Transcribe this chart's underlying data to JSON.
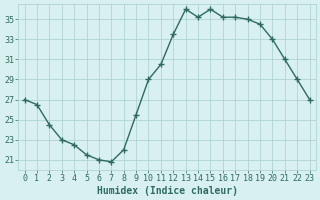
{
  "x": [
    0,
    1,
    2,
    3,
    4,
    5,
    6,
    7,
    8,
    9,
    10,
    11,
    12,
    13,
    14,
    15,
    16,
    17,
    18,
    19,
    20,
    21,
    22,
    23
  ],
  "y": [
    27,
    26.5,
    24.5,
    23,
    22.5,
    21.5,
    21,
    20.8,
    22,
    25.5,
    29,
    30.5,
    33.5,
    36,
    35.2,
    36,
    35.2,
    35.2,
    35,
    34.5,
    33,
    31,
    29,
    27
  ],
  "line_color": "#2e6b5e",
  "marker": "+",
  "marker_size": 4,
  "marker_lw": 1.0,
  "line_width": 1.0,
  "bg_color": "#d8f0ef",
  "grid_color": "#aacfcc",
  "xlabel": "Humidex (Indice chaleur)",
  "ylim": [
    20.0,
    36.5
  ],
  "xlim": [
    -0.5,
    23.5
  ],
  "yticks": [
    21,
    23,
    25,
    27,
    29,
    31,
    33,
    35
  ],
  "xticks": [
    0,
    1,
    2,
    3,
    4,
    5,
    6,
    7,
    8,
    9,
    10,
    11,
    12,
    13,
    14,
    15,
    16,
    17,
    18,
    19,
    20,
    21,
    22,
    23
  ],
  "xlabel_fontsize": 7,
  "tick_fontsize": 6,
  "tick_color": "#2e6b5e"
}
